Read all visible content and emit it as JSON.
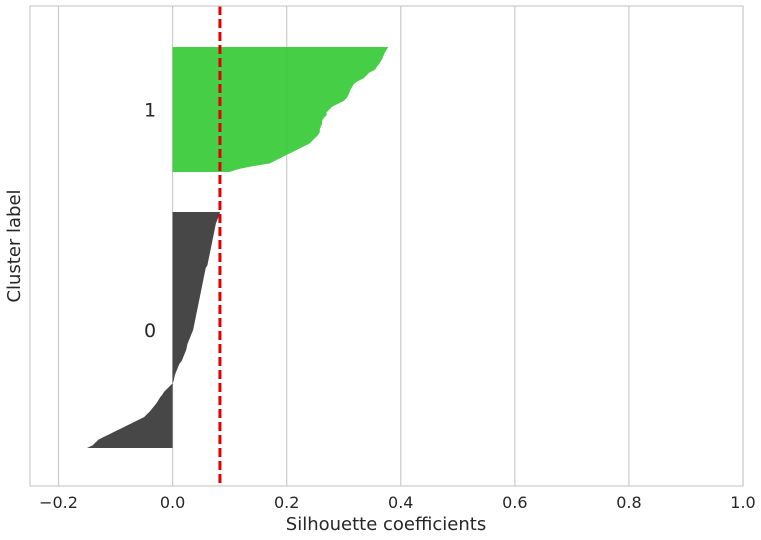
{
  "chart_data": {
    "type": "area",
    "xlabel": "Silhouette coefficients",
    "ylabel": "Cluster label",
    "xlim": [
      -0.25,
      1.0
    ],
    "x_ticks": [
      {
        "value": -0.2,
        "label": "−0.2"
      },
      {
        "value": 0.0,
        "label": "0.0"
      },
      {
        "value": 0.2,
        "label": "0.2"
      },
      {
        "value": 0.4,
        "label": "0.4"
      },
      {
        "value": 0.6,
        "label": "0.6"
      },
      {
        "value": 0.8,
        "label": "0.8"
      },
      {
        "value": 1.0,
        "label": "1.0"
      }
    ],
    "grid": "vertical",
    "average_silhouette": 0.083,
    "average_line_color": "#e00000",
    "clusters": [
      {
        "label": "0",
        "color": "#333333",
        "values": [
          0.083,
          0.082,
          0.08,
          0.078,
          0.076,
          0.075,
          0.074,
          0.073,
          0.072,
          0.071,
          0.07,
          0.069,
          0.068,
          0.067,
          0.066,
          0.065,
          0.064,
          0.063,
          0.062,
          0.061,
          0.058,
          0.057,
          0.056,
          0.055,
          0.054,
          0.053,
          0.052,
          0.051,
          0.05,
          0.049,
          0.048,
          0.047,
          0.046,
          0.045,
          0.044,
          0.043,
          0.042,
          0.041,
          0.04,
          0.039,
          0.038,
          0.037,
          0.036,
          0.034,
          0.032,
          0.03,
          0.028,
          0.026,
          0.025,
          0.024,
          0.022,
          0.02,
          0.018,
          0.016,
          0.012,
          0.01,
          0.008,
          0.006,
          0.004,
          0.003,
          0.002,
          0.0,
          -0.005,
          -0.01,
          -0.015,
          -0.018,
          -0.022,
          -0.025,
          -0.028,
          -0.032,
          -0.036,
          -0.04,
          -0.045,
          -0.05,
          -0.06,
          -0.07,
          -0.08,
          -0.09,
          -0.1,
          -0.11,
          -0.12,
          -0.13,
          -0.135,
          -0.14,
          -0.15
        ]
      },
      {
        "label": "1",
        "color": "#33c933",
        "values": [
          0.378,
          0.375,
          0.372,
          0.37,
          0.368,
          0.365,
          0.362,
          0.358,
          0.355,
          0.345,
          0.34,
          0.335,
          0.325,
          0.318,
          0.315,
          0.312,
          0.31,
          0.308,
          0.305,
          0.3,
          0.29,
          0.28,
          0.275,
          0.27,
          0.27,
          0.265,
          0.262,
          0.262,
          0.26,
          0.258,
          0.258,
          0.255,
          0.25,
          0.245,
          0.24,
          0.23,
          0.22,
          0.21,
          0.2,
          0.19,
          0.18,
          0.17,
          0.14,
          0.115,
          0.1
        ]
      }
    ]
  }
}
